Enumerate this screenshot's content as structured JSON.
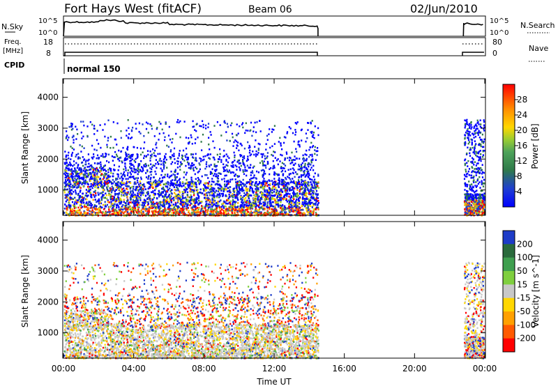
{
  "header": {
    "title": "Fort Hays West (fitACF)",
    "beam": "Beam 06",
    "date": "02/Jun/2010"
  },
  "labels": {
    "nsky": "N.Sky",
    "nsearch": "N.Search",
    "freq_line1": "Freq.",
    "freq_line2": "[MHz]",
    "cpid": "CPID",
    "nave": "Nave",
    "cpid_value": "normal 150",
    "nsky_tick_hi": "10^5",
    "nsky_tick_lo": "10^0",
    "nsearch_tick_hi": "10^5",
    "nsearch_tick_lo": "10^0",
    "freq_tick_hi": "18",
    "freq_tick_lo": "8",
    "nave_tick_hi": "80",
    "nave_tick_lo": "0"
  },
  "chart_data": [
    {
      "type": "heatmap",
      "name": "power",
      "ylabel": "Slant Range [km]",
      "xlabel": "",
      "xlim": [
        0,
        24
      ],
      "ylim": [
        180,
        4600
      ],
      "x_ticks": [
        "00:00",
        "04:00",
        "08:00",
        "12:00",
        "16:00",
        "20:00",
        "00:00"
      ],
      "y_ticks": [
        1000,
        2000,
        3000,
        4000
      ],
      "colorbar": {
        "label": "Power [dB]",
        "ticks": [
          4,
          8,
          12,
          16,
          20,
          24,
          28
        ],
        "colors": [
          "#0000ff",
          "#1f4ad6",
          "#2f7a4a",
          "#49a060",
          "#9acd32",
          "#ffd700",
          "#ffa500",
          "#ff6a00",
          "#ff0000"
        ]
      },
      "data_gap_hours": [
        14.55,
        22.75
      ],
      "scatter_regions": [
        {
          "hours": [
            0.0,
            14.5
          ],
          "ranges_km": [
            600,
            1300
          ],
          "level": "high",
          "note": "dense backscatter"
        },
        {
          "hours": [
            0.0,
            14.5
          ],
          "ranges_km": [
            1300,
            3300
          ],
          "level": "low"
        },
        {
          "hours": [
            22.8,
            24.0
          ],
          "ranges_km": [
            200,
            3300
          ],
          "level": "mixed"
        }
      ]
    },
    {
      "type": "heatmap",
      "name": "velocity",
      "ylabel": "Slant Range [km]",
      "xlabel": "Time UT",
      "xlim": [
        0,
        24
      ],
      "ylim": [
        180,
        4600
      ],
      "x_ticks": [
        "00:00",
        "04:00",
        "08:00",
        "12:00",
        "16:00",
        "20:00",
        "00:00"
      ],
      "y_ticks": [
        1000,
        2000,
        3000,
        4000
      ],
      "colorbar": {
        "label": "Velocity [m s^-1]",
        "ticks": [
          200,
          100,
          50,
          15,
          -15,
          -50,
          -100,
          -200
        ],
        "colors": [
          "#1e3cc8",
          "#2a6a3c",
          "#3f9f4f",
          "#7fcf3f",
          "#c8c8c8",
          "#ffd700",
          "#ffa000",
          "#ff5a00",
          "#ff0000"
        ]
      },
      "data_gap_hours": [
        14.55,
        22.75
      ]
    }
  ]
}
